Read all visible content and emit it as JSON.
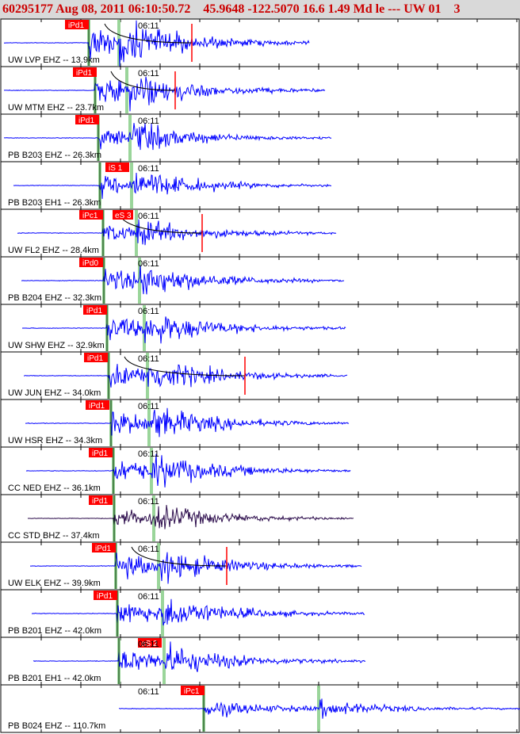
{
  "header": {
    "title": "60295177 Aug 08, 2011 06:10:50.72    45.9648 -122.5070 16.6 1.49 Md le --- UW 01    3"
  },
  "colors": {
    "waveform": "#0000ff",
    "waveform_alt": "#2a0a4a",
    "pick_flag": "#ff0000",
    "pick_line": "#8fd08f",
    "tick": "#000000",
    "model_curve": "#000000",
    "amp_marker": "#ff0000"
  },
  "chart_data": {
    "type": "seismogram",
    "title": "60295177 Aug 08, 2011 06:10:50.72    45.9648 -122.5070 16.6 1.49 Md le --- UW 01    3",
    "time_label": "06:11",
    "traces": [
      {
        "label": "UW LVP EHZ -- 13.9km",
        "pick": "iPd1",
        "color": "#0000ff",
        "has_amp": true
      },
      {
        "label": "UW MTM EHZ -- 23.7km",
        "pick": "iPd1",
        "color": "#0000ff",
        "has_amp": true
      },
      {
        "label": "PB B203 EHZ -- 26.3km",
        "pick": "iPd1",
        "color": "#0000ff",
        "has_amp": false
      },
      {
        "label": "PB B203 EH1 -- 26.3km",
        "pick": "iS 1",
        "color": "#0000ff",
        "has_amp": false
      },
      {
        "label": "UW FL2 EHZ -- 28.4km",
        "pick": "iPc1",
        "pick2": "eS 3",
        "color": "#0000ff",
        "has_amp": true
      },
      {
        "label": "PB B204 EHZ -- 32.3km",
        "pick": "iPd0",
        "color": "#0000ff",
        "has_amp": false
      },
      {
        "label": "UW SHW EHZ -- 32.9km",
        "pick": "iPd1",
        "color": "#0000ff",
        "has_amp": false
      },
      {
        "label": "UW JUN EHZ -- 34.0km",
        "pick": "iPd1",
        "color": "#0000ff",
        "has_amp": true
      },
      {
        "label": "UW HSR EHZ -- 34.3km",
        "pick": "iPd1",
        "color": "#0000ff",
        "has_amp": false
      },
      {
        "label": "CC NED EHZ -- 36.1km",
        "pick": "iPd1",
        "color": "#0000ff",
        "has_amp": false
      },
      {
        "label": "CC STD BHZ -- 37.4km",
        "pick": "iPd1",
        "color": "#2a0a4a",
        "has_amp": false
      },
      {
        "label": "UW ELK EHZ -- 39.9km",
        "pick": "iPd1",
        "color": "#0000ff",
        "has_amp": true
      },
      {
        "label": "PB B201 EHZ -- 42.0km",
        "pick": "iPd1",
        "color": "#0000ff",
        "has_amp": false
      },
      {
        "label": "PB B201 EH1 -- 42.0km",
        "pick": "eS 2",
        "color": "#0000ff",
        "has_amp": false
      },
      {
        "label": "PB B024 EHZ -- 110.7km",
        "pick": "iPc1",
        "color": "#0000ff",
        "has_amp": false
      }
    ]
  }
}
